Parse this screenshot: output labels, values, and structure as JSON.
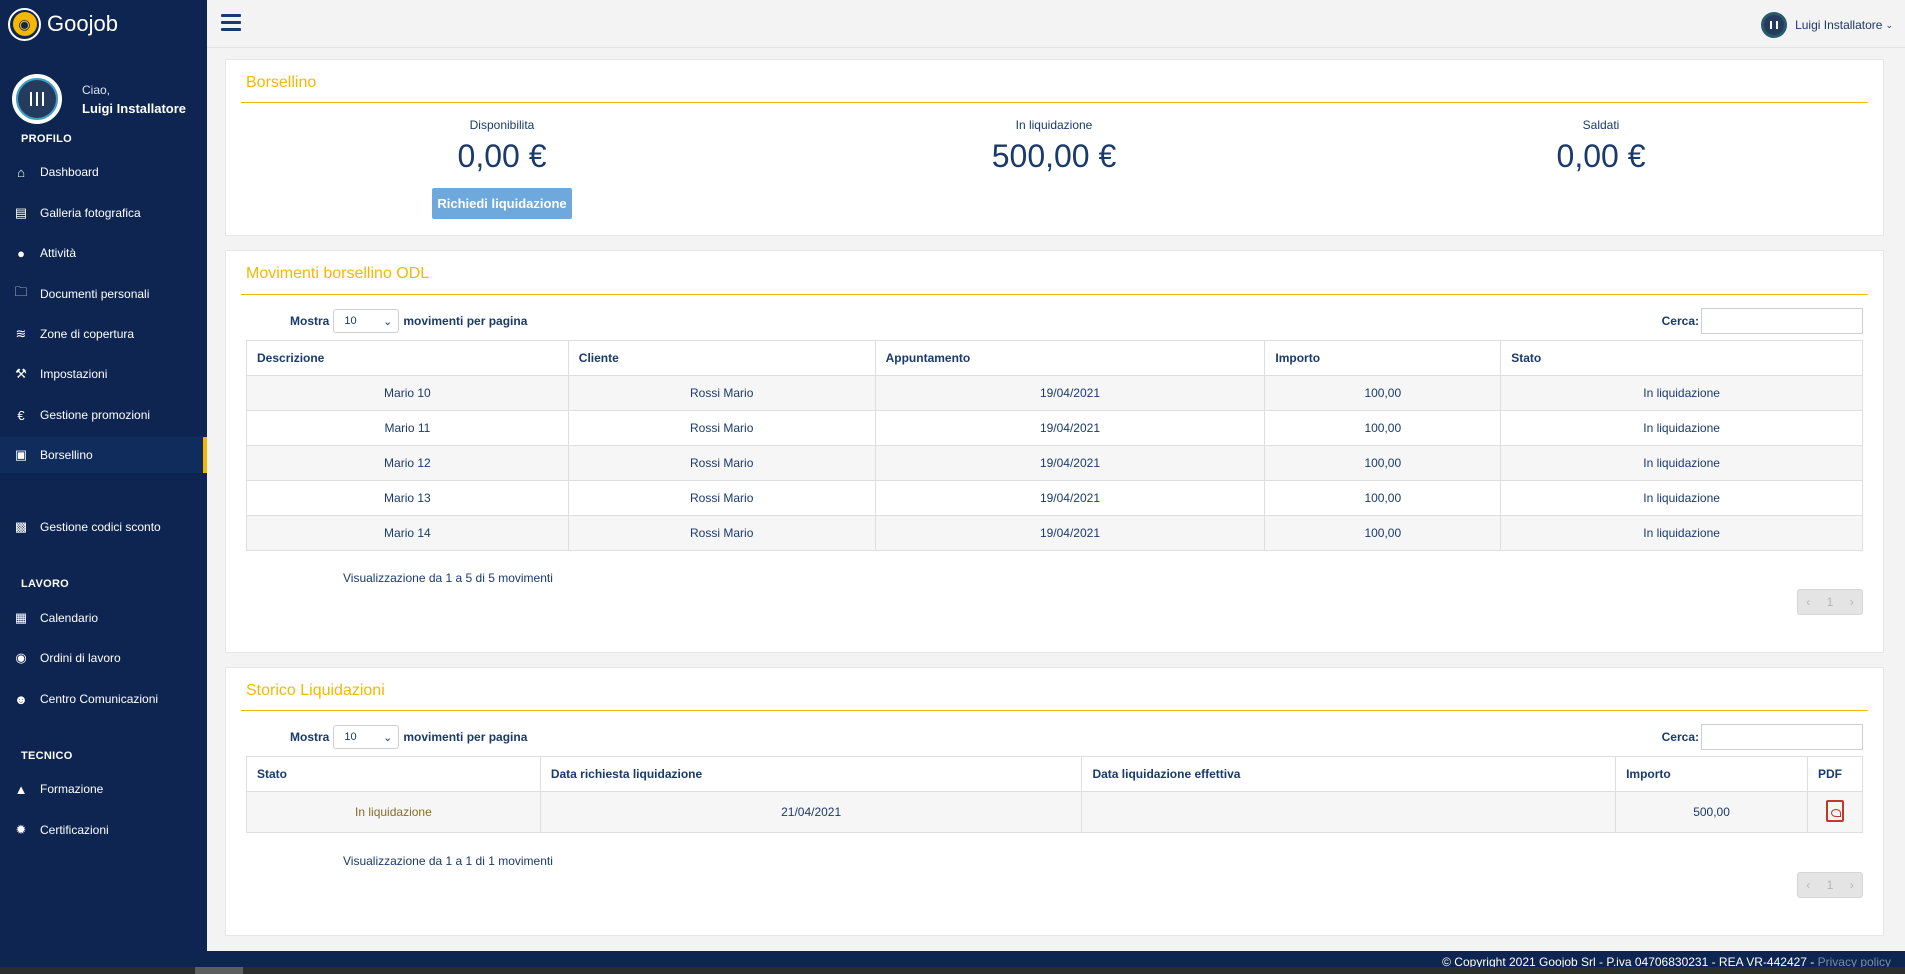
{
  "app": {
    "name": "Goojob"
  },
  "user": {
    "greeting": "Ciao,",
    "name": "Luigi Installatore",
    "top_label": "Luigi Installatore"
  },
  "sidebar": {
    "sections": {
      "profilo": "PROFILO",
      "lavoro": "LAVORO",
      "tecnico": "TECNICO"
    },
    "items": [
      {
        "label": "Dashboard",
        "icon": "home-icon"
      },
      {
        "label": "Galleria fotografica",
        "icon": "image-icon"
      },
      {
        "label": "Attività",
        "icon": "user-icon"
      },
      {
        "label": "Documenti personali",
        "icon": "folder-icon"
      },
      {
        "label": "Zone di copertura",
        "icon": "wifi-icon"
      },
      {
        "label": "Impostazioni",
        "icon": "wrench-icon"
      },
      {
        "label": "Gestione promozioni",
        "icon": "euro-icon"
      },
      {
        "label": "Borsellino",
        "icon": "briefcase-icon"
      },
      {
        "label": "Gestione codici sconto",
        "icon": "money-icon"
      },
      {
        "label": "Calendario",
        "icon": "calendar-icon"
      },
      {
        "label": "Ordini di lavoro",
        "icon": "globe-icon"
      },
      {
        "label": "Centro Comunicazioni",
        "icon": "users-icon"
      },
      {
        "label": "Formazione",
        "icon": "graduation-cap-icon"
      },
      {
        "label": "Certificazioni",
        "icon": "certificate-icon"
      }
    ]
  },
  "wallet": {
    "title": "Borsellino",
    "disponibilita_label": "Disponibilita",
    "disponibilita_value": "0,00 €",
    "liquidazione_label": "In liquidazione",
    "liquidazione_value": "500,00 €",
    "saldati_label": "Saldati",
    "saldati_value": "0,00 €",
    "button": "Richiedi liquidazione"
  },
  "movimenti": {
    "title": "Movimenti borsellino ODL",
    "show_label": "Mostra",
    "per_page": "10",
    "per_page_suffix": "movimenti per pagina",
    "search_label": "Cerca:",
    "columns": [
      "Descrizione",
      "Cliente",
      "Appuntamento",
      "Importo",
      "Stato"
    ],
    "rows": [
      [
        "Mario 10",
        "Rossi Mario",
        "19/04/2021",
        "100,00",
        "In liquidazione"
      ],
      [
        "Mario 11",
        "Rossi Mario",
        "19/04/2021",
        "100,00",
        "In liquidazione"
      ],
      [
        "Mario 12",
        "Rossi Mario",
        "19/04/2021",
        "100,00",
        "In liquidazione"
      ],
      [
        "Mario 13",
        "Rossi Mario",
        "19/04/2021",
        "100,00",
        "In liquidazione"
      ],
      [
        "Mario 14",
        "Rossi Mario",
        "19/04/2021",
        "100,00",
        "In liquidazione"
      ]
    ],
    "info": "Visualizzazione da 1 a 5 di 5 movimenti",
    "page": "1"
  },
  "storico": {
    "title": "Storico Liquidazioni",
    "show_label": "Mostra",
    "per_page": "10",
    "per_page_suffix": "movimenti per pagina",
    "search_label": "Cerca:",
    "columns": [
      "Stato",
      "Data richiesta liquidazione",
      "Data liquidazione effettiva",
      "Importo",
      "PDF"
    ],
    "rows": [
      [
        "In liquidazione",
        "21/04/2021",
        "",
        "500,00"
      ]
    ],
    "info": "Visualizzazione da 1 a 1 di 1 movimenti",
    "page": "1"
  },
  "footer": {
    "copyright": "© Copyright 2021 Goojob Srl - P.iva 04706830231 - REA VR-442427 - ",
    "privacy": "Privacy policy"
  },
  "colors": {
    "sidebar": "#0d2550",
    "accent": "#f5b800",
    "text": "#1a3a6b",
    "button": "#6fa9db"
  }
}
